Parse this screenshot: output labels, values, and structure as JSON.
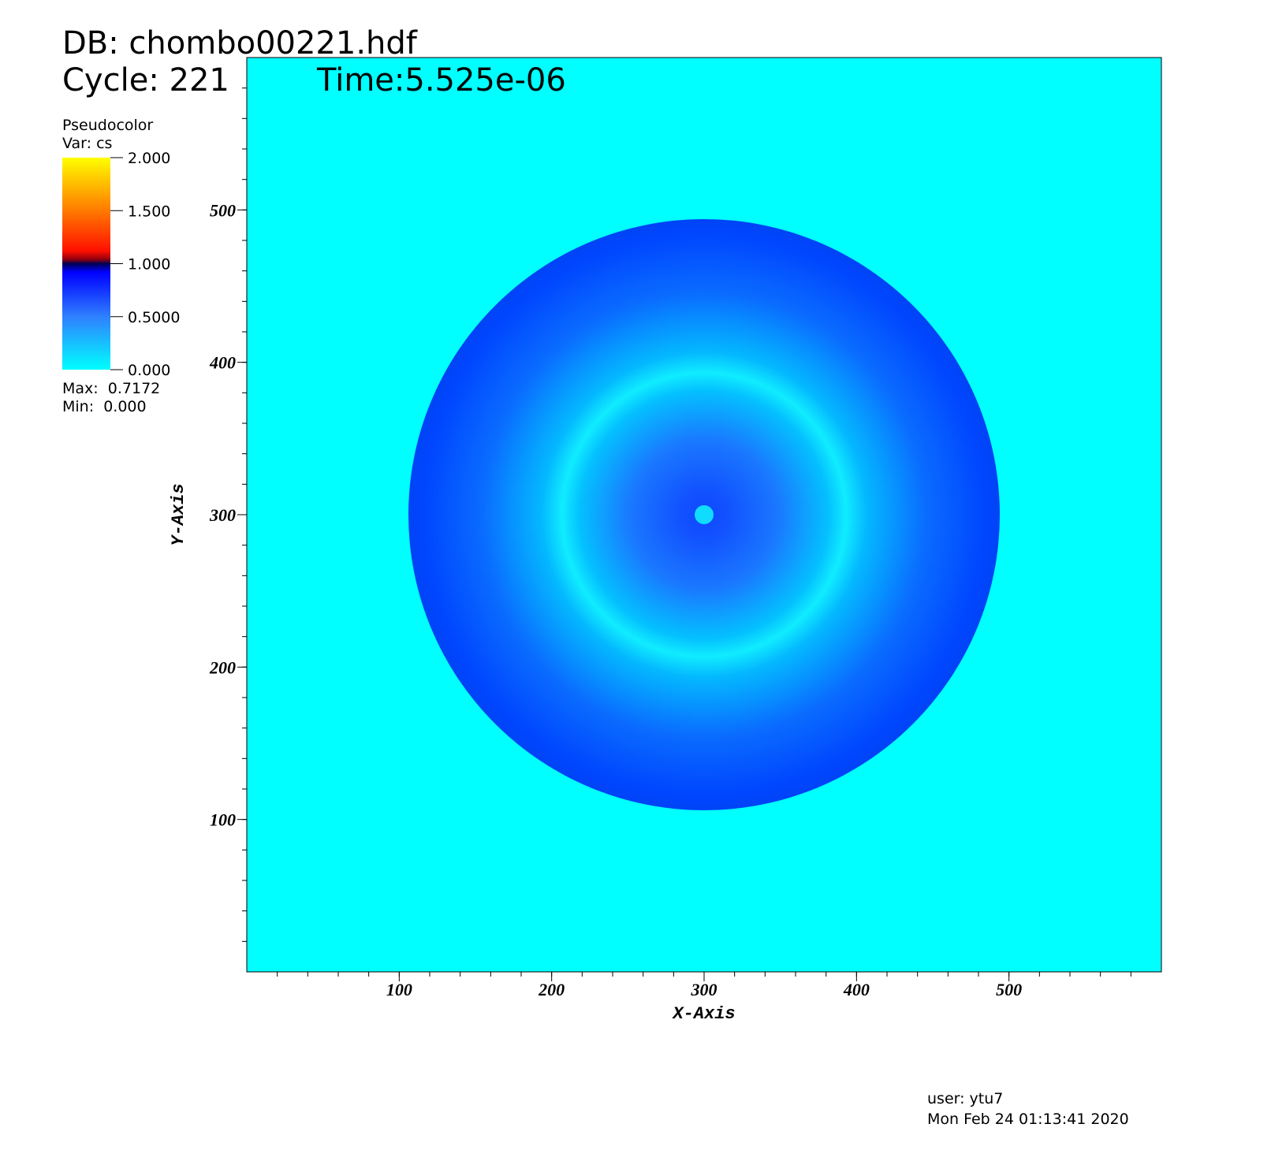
{
  "chart_data": {
    "type": "pseudocolor",
    "db": "DB: chombo00221.hdf",
    "cycle": "Cycle: 221",
    "time": "Time:5.525e-06",
    "xlabel": "X-Axis",
    "ylabel": "Y-Axis",
    "xlim": [
      0,
      600
    ],
    "ylim": [
      0,
      600
    ],
    "xticks": [
      100,
      200,
      300,
      400,
      500
    ],
    "yticks": [
      100,
      200,
      300,
      400,
      500
    ],
    "legend": {
      "title": "Pseudocolor",
      "var": "Var: cs",
      "lim": [
        0,
        2
      ],
      "ticks": [
        {
          "value": 2,
          "label": "2.000"
        },
        {
          "value": 1.5,
          "label": "1.500"
        },
        {
          "value": 1,
          "label": "1.000"
        },
        {
          "value": 0.5,
          "label": "0.5000"
        },
        {
          "value": 0,
          "label": "0.000"
        }
      ],
      "max": "Max:  0.7172",
      "min": "Min:  0.000"
    },
    "user": "user: ytu7",
    "date": "Mon Feb 24 01:13:41 2020"
  }
}
